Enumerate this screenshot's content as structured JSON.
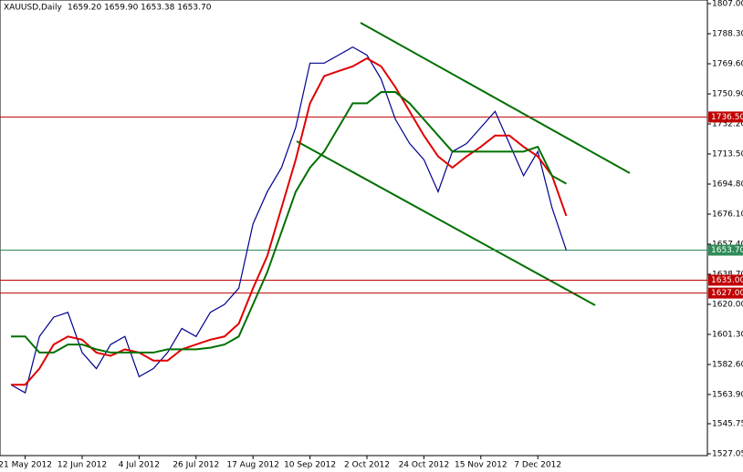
{
  "chart_data": {
    "type": "line",
    "title": "XAUUSD,Daily",
    "subtitle": "1659.20 1659.90 1653.38 1653.70",
    "categories": [
      null,
      "21 May 2012",
      null,
      null,
      null,
      "12 Jun 2012",
      null,
      null,
      null,
      "4 Jul 2012",
      null,
      null,
      null,
      "26 Jul 2012",
      null,
      null,
      null,
      "17 Aug 2012",
      null,
      null,
      null,
      "10 Sep 2012",
      null,
      null,
      null,
      "2 Oct 2012",
      null,
      null,
      null,
      "24 Oct 2012",
      null,
      null,
      null,
      "15 Nov 2012",
      null,
      null,
      null,
      "7 Dec 2012",
      null,
      null
    ],
    "series": [
      {
        "color": "#00008b",
        "values": [
          1570,
          1565,
          1600,
          1612,
          1615,
          1590,
          1580,
          1595,
          1600,
          1575,
          1580,
          1590,
          1605,
          1600,
          1615,
          1620,
          1630,
          1670,
          1690,
          1705,
          1730,
          1770,
          1770,
          1775,
          1780,
          1775,
          1760,
          1735,
          1720,
          1710,
          1690,
          1715,
          1720,
          1730,
          1740,
          1720,
          1700,
          1715,
          1680,
          1653.7
        ]
      },
      {
        "color": "#e00000",
        "values": [
          1570,
          1570,
          1580,
          1595,
          1600,
          1598,
          1590,
          1588,
          1592,
          1590,
          1585,
          1585,
          1592,
          1595,
          1598,
          1600,
          1608,
          1630,
          1650,
          1680,
          1710,
          1745,
          1762,
          1765,
          1768,
          1773,
          1768,
          1755,
          1740,
          1725,
          1712,
          1705,
          1712,
          1718,
          1725,
          1725,
          1718,
          1712,
          1700,
          1675
        ]
      },
      {
        "color": "#007000",
        "values": [
          1600,
          1600,
          1590,
          1590,
          1595,
          1595,
          1592,
          1590,
          1590,
          1590,
          1590,
          1592,
          1592,
          1592,
          1593,
          1595,
          1600,
          1620,
          1640,
          1665,
          1690,
          1705,
          1715,
          1730,
          1745,
          1745,
          1752,
          1752,
          1745,
          1735,
          1725,
          1715,
          1715,
          1715,
          1715,
          1715,
          1715,
          1718,
          1700,
          1695
        ]
      }
    ],
    "levels": [
      {
        "value": 1736.5,
        "label": "1736.50",
        "color": "#c00000"
      },
      {
        "value": 1653.7,
        "label": "1653.70",
        "color": "#2e8b57"
      },
      {
        "value": 1635,
        "label": "1635.00",
        "color": "#c00000"
      },
      {
        "value": 1627,
        "label": "1627.00",
        "color": "#c00000"
      }
    ],
    "ylim": [
      1527.05,
      1807
    ],
    "yticks": [
      {
        "value": 1807,
        "label": "1807.00"
      },
      {
        "value": 1788.3,
        "label": "1788.30"
      },
      {
        "value": 1769.6,
        "label": "1769.60"
      },
      {
        "value": 1750.9,
        "label": "1750.90"
      },
      {
        "value": 1732.2,
        "label": "1732.20"
      },
      {
        "value": 1713.5,
        "label": "1713.50"
      },
      {
        "value": 1694.8,
        "label": "1694.80"
      },
      {
        "value": 1676.1,
        "label": "1676.10"
      },
      {
        "value": 1657.4,
        "label": "1657.40"
      },
      {
        "value": 1638.7,
        "label": "1638.70"
      },
      {
        "value": 1620,
        "label": "1620.00"
      },
      {
        "value": 1601.3,
        "label": "1601.30"
      },
      {
        "value": 1582.6,
        "label": "1582.60"
      },
      {
        "value": 1563.9,
        "label": "1563.90"
      },
      {
        "value": 1545.75,
        "label": "1545.75"
      },
      {
        "value": 1527.05,
        "label": "1527.05"
      }
    ]
  }
}
